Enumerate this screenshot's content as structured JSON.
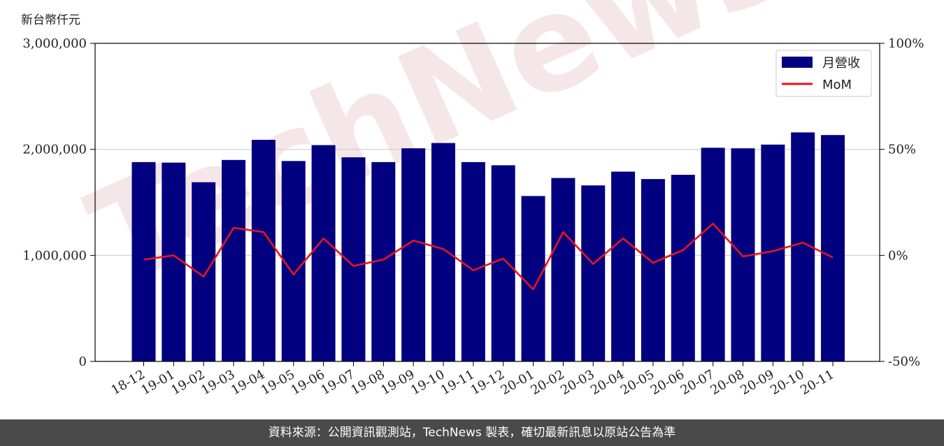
{
  "chart_data": {
    "type": "bar",
    "y_unit_label": "新台幣仟元",
    "categories": [
      "18-12",
      "19-01",
      "19-02",
      "19-03",
      "19-04",
      "19-05",
      "19-06",
      "19-07",
      "19-08",
      "19-09",
      "19-10",
      "19-11",
      "19-12",
      "20-01",
      "20-02",
      "20-03",
      "20-04",
      "20-05",
      "20-06",
      "20-07",
      "20-08",
      "20-09",
      "20-10",
      "20-11"
    ],
    "series": [
      {
        "name": "月營收",
        "type": "bar",
        "axis": "left",
        "color": "#000080",
        "values": [
          1880000,
          1875000,
          1690000,
          1900000,
          2090000,
          1890000,
          2040000,
          1925000,
          1880000,
          2010000,
          2060000,
          1880000,
          1850000,
          1560000,
          1730000,
          1660000,
          1790000,
          1720000,
          1760000,
          2015000,
          2010000,
          2045000,
          2160000,
          2135000
        ]
      },
      {
        "name": "MoM",
        "type": "line",
        "axis": "right",
        "color": "#e8141c",
        "values": [
          -2,
          0,
          -10,
          13,
          11,
          -9,
          8,
          -5,
          -2,
          7,
          3,
          -7,
          -1.5,
          -16,
          11,
          -4,
          8,
          -3.5,
          2.5,
          15,
          -0.5,
          2,
          6,
          -1
        ]
      }
    ],
    "y_left": {
      "lim": [
        0,
        3000000
      ],
      "ticks": [
        0,
        1000000,
        2000000,
        3000000
      ],
      "tick_labels": [
        "0",
        "1,000,000",
        "2,000,000",
        "3,000,000"
      ]
    },
    "y_right": {
      "lim": [
        -50,
        100
      ],
      "ticks": [
        -50,
        0,
        50,
        100
      ],
      "tick_labels": [
        "-50%",
        "0%",
        "50%",
        "100%"
      ]
    },
    "grid": "horizontal",
    "legend_position": "top-right",
    "watermark": "TechNews",
    "source_note": "資料來源：公開資訊觀測站，TechNews 製表，確切最新訊息以原站公告為準"
  }
}
